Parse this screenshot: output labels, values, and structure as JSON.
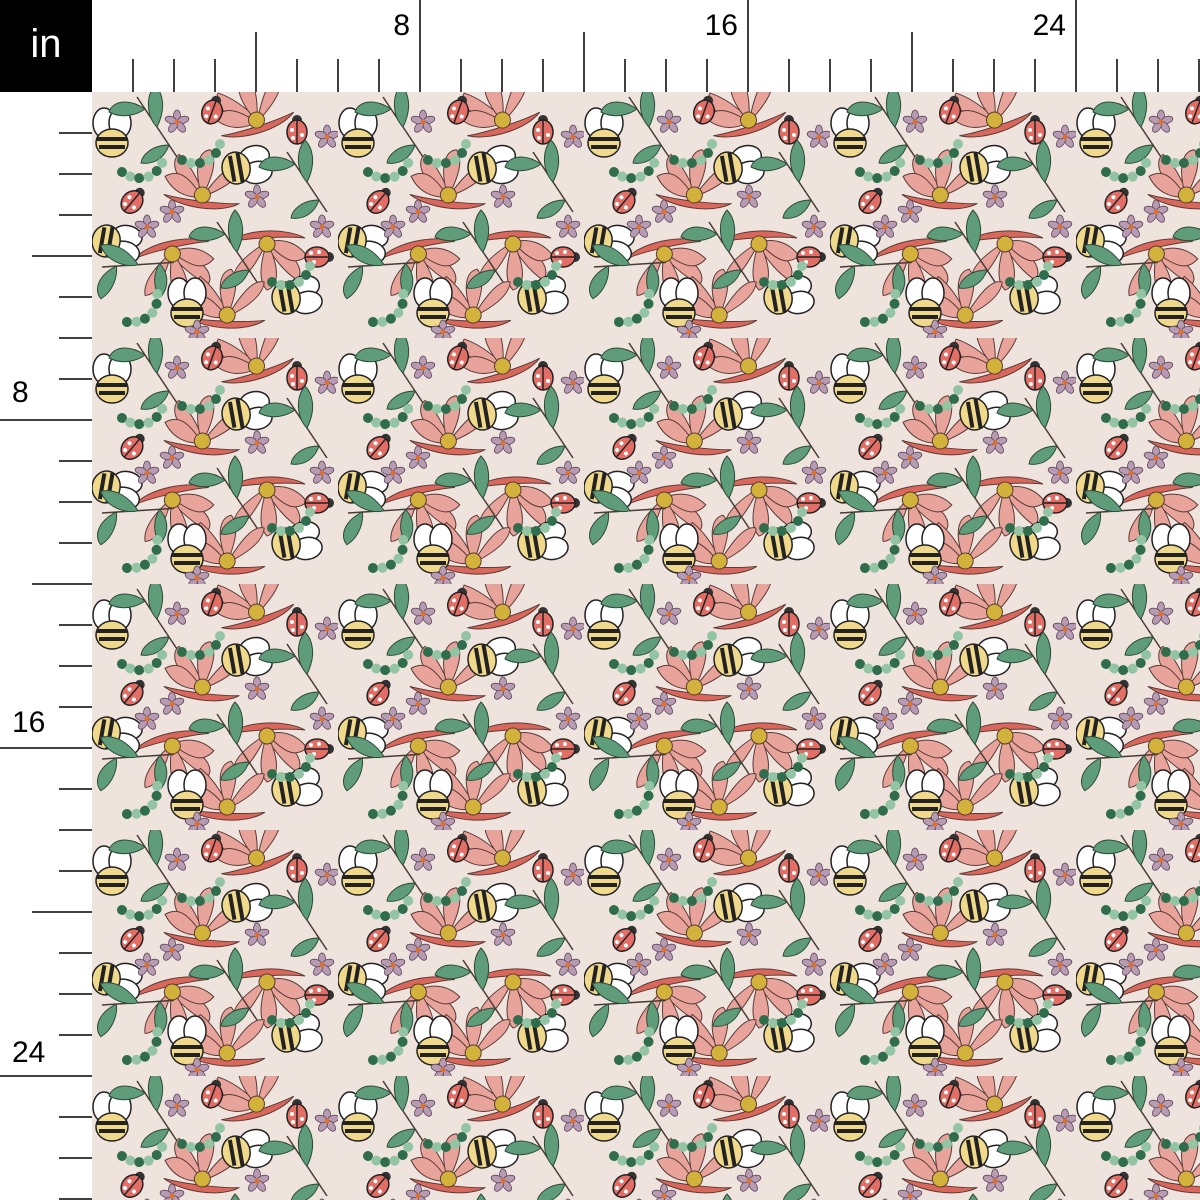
{
  "ruler": {
    "unit_label": "in",
    "top_labels": [
      "8",
      "16",
      "24"
    ],
    "left_labels": [
      "8",
      "16",
      "24"
    ]
  },
  "fabric": {
    "motifs": [
      "pink-flower",
      "bee",
      "ladybug",
      "purple-daisy",
      "leaf-sprig",
      "green-beads"
    ],
    "colors": {
      "background": "#efe3de",
      "petal": "#e8a39a",
      "petal_dark": "#d9675b",
      "leaf": "#5f9c7a",
      "bee_yellow": "#f0d98a",
      "daisy": "#b79bb3",
      "bead_dark": "#2f6d4c",
      "bead_light": "#93c4a4"
    }
  }
}
